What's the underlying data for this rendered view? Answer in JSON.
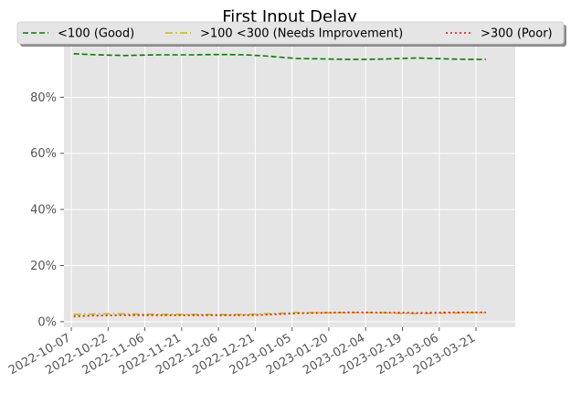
{
  "chart_data": {
    "type": "line",
    "title": "First Input Delay",
    "xlabel": "",
    "ylabel": "",
    "ylim": [
      -0.02,
      1.0
    ],
    "xlim": [
      "2022-10-04",
      "2023-04-06"
    ],
    "y_ticks": [
      0,
      0.2,
      0.4,
      0.6,
      0.8
    ],
    "y_tick_labels": [
      "0%",
      "20%",
      "40%",
      "60%",
      "80%"
    ],
    "x_ticks": [
      "2022-10-07",
      "2022-10-22",
      "2022-11-06",
      "2022-11-21",
      "2022-12-06",
      "2022-12-21",
      "2023-01-05",
      "2023-01-20",
      "2023-02-04",
      "2023-02-19",
      "2023-03-06",
      "2023-03-21"
    ],
    "grid": true,
    "legend_position": "top",
    "colors": {
      "plot_bg": "#e5e5e5",
      "good": "#008000",
      "needs_improvement": "#bfbf00",
      "poor": "#ff0000"
    },
    "x": [
      "2022-10-08",
      "2022-10-15",
      "2022-10-22",
      "2022-10-29",
      "2022-11-05",
      "2022-11-12",
      "2022-11-19",
      "2022-11-26",
      "2022-12-03",
      "2022-12-10",
      "2022-12-17",
      "2022-12-24",
      "2022-12-31",
      "2023-01-07",
      "2023-01-14",
      "2023-01-21",
      "2023-01-28",
      "2023-02-04",
      "2023-02-11",
      "2023-02-18",
      "2023-02-25",
      "2023-03-04",
      "2023-03-11",
      "2023-03-18",
      "2023-03-25"
    ],
    "series": [
      {
        "name": "<100 (Good)",
        "style": "dashed",
        "color": "#008000",
        "values": [
          0.955,
          0.952,
          0.95,
          0.949,
          0.95,
          0.951,
          0.951,
          0.951,
          0.952,
          0.952,
          0.951,
          0.948,
          0.943,
          0.938,
          0.937,
          0.936,
          0.935,
          0.935,
          0.936,
          0.938,
          0.94,
          0.938,
          0.936,
          0.935,
          0.935
        ]
      },
      {
        "name": ">100  <300 (Needs Improvement)",
        "style": "dashdot",
        "color": "#bfbf00",
        "values": [
          0.026,
          0.027,
          0.028,
          0.028,
          0.027,
          0.026,
          0.026,
          0.026,
          0.025,
          0.025,
          0.026,
          0.028,
          0.03,
          0.032,
          0.032,
          0.032,
          0.032,
          0.032,
          0.032,
          0.03,
          0.029,
          0.03,
          0.031,
          0.032,
          0.032
        ]
      },
      {
        "name": ">300 (Poor)",
        "style": "dotted",
        "color": "#ff0000",
        "values": [
          0.019,
          0.021,
          0.022,
          0.023,
          0.023,
          0.023,
          0.023,
          0.023,
          0.023,
          0.023,
          0.023,
          0.024,
          0.027,
          0.03,
          0.031,
          0.032,
          0.033,
          0.033,
          0.032,
          0.032,
          0.031,
          0.032,
          0.033,
          0.033,
          0.033
        ]
      }
    ]
  }
}
